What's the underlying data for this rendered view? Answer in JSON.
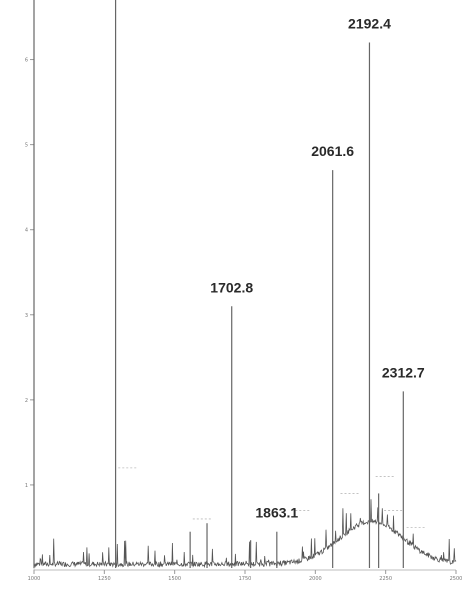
{
  "chart_data": {
    "type": "line",
    "xlim": [
      1000,
      2500
    ],
    "ylim": [
      0,
      6.7
    ],
    "x_ticks": [
      1000,
      1250,
      1500,
      1750,
      2000,
      2250,
      2500
    ],
    "y_ticks": [
      1,
      2,
      3,
      4,
      5,
      6
    ],
    "grid": false,
    "peaks": [
      {
        "x": 1000,
        "y": 7.0,
        "label": ""
      },
      {
        "x": 1290,
        "y": 7.0,
        "label": ""
      },
      {
        "x": 1555,
        "y": 0.45,
        "label": ""
      },
      {
        "x": 1615,
        "y": 0.55,
        "label": ""
      },
      {
        "x": 1702.8,
        "y": 3.1,
        "label": "1702.8"
      },
      {
        "x": 1770,
        "y": 0.35,
        "label": ""
      },
      {
        "x": 1863.1,
        "y": 0.45,
        "label": "1863.1"
      },
      {
        "x": 2061.6,
        "y": 4.7,
        "label": "2061.6"
      },
      {
        "x": 2192.4,
        "y": 6.2,
        "label": "2192.4"
      },
      {
        "x": 2225,
        "y": 0.9,
        "label": ""
      },
      {
        "x": 2312.7,
        "y": 2.1,
        "label": "2312.7"
      }
    ],
    "baseline_bumps": [
      {
        "center": 2200,
        "width": 160,
        "height": 0.5
      }
    ]
  }
}
